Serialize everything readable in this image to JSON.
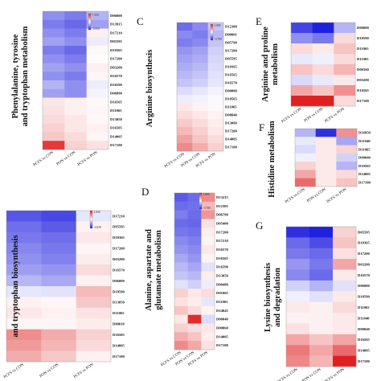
{
  "colors": {
    "low": "#2020e0",
    "mid": "#ffffff",
    "high": "#e02020"
  },
  "chart_data": [
    {
      "type": "heatmap",
      "panel": "",
      "title_lines": [
        "Phenylalanine, tyrosine",
        "and tryptophan metabolism"
      ],
      "columns": [
        "PCFS vs CON",
        "PON vs CON",
        "PCFS vs PON"
      ],
      "colorbar_labels": [
        "7.350",
        "-5.950"
      ],
      "vrange": [
        -5.95,
        7.35
      ],
      "rows": [
        "D06000",
        "D13915",
        "D17210",
        "D05595",
        "D10365",
        "D17200",
        "D03200",
        "D16570",
        "D16590",
        "D06090",
        "D16565",
        "D11065",
        "D13050",
        "D16505",
        "D14005",
        "D17100"
      ],
      "values": [
        [
          -3,
          -3.5,
          -2
        ],
        [
          -3.5,
          -4,
          -2.5
        ],
        [
          -3,
          -3.5,
          0.5
        ],
        [
          -2.5,
          -3,
          -0.5
        ],
        [
          -3.5,
          -4,
          0.2
        ],
        [
          -3,
          -3.5,
          0.1
        ],
        [
          -2.5,
          -3,
          0.5
        ],
        [
          -3,
          -3.5,
          0.3
        ],
        [
          -2,
          -3,
          -0.5
        ],
        [
          -2.5,
          -3,
          -0.3
        ],
        [
          0.8,
          0.5,
          0.2
        ],
        [
          1,
          0.5,
          0.3
        ],
        [
          1.2,
          0.8,
          0.2
        ],
        [
          1.5,
          0.8,
          0.5
        ],
        [
          1.8,
          1.2,
          0.3
        ],
        [
          6.5,
          1.5,
          1
        ]
      ]
    },
    {
      "type": "heatmap",
      "panel": "C",
      "title_lines": [
        "Arginine biosynthesis"
      ],
      "columns": [
        "PCFS vs CON",
        "PON vs CON",
        "PCFS vs PON"
      ],
      "colorbar_labels": [
        "3.800",
        "-3.780"
      ],
      "vrange": [
        -3.78,
        3.8
      ],
      "rows": [
        "D12300",
        "D00001",
        "D05790",
        "D17200",
        "D05595",
        "D10365",
        "D16565",
        "D16570",
        "D00000",
        "D10565",
        "D11065",
        "D00840",
        "D13060",
        "D17200",
        "D14005",
        "D17100"
      ],
      "values": [
        [
          -2.5,
          -2,
          -1
        ],
        [
          -2,
          -2.2,
          -1.2
        ],
        [
          -2.2,
          -2,
          -1
        ],
        [
          -1.8,
          -1.6,
          -0.8
        ],
        [
          -1.6,
          -1.4,
          -0.7
        ],
        [
          -1.4,
          -1.2,
          -0.6
        ],
        [
          -1.2,
          -1,
          -0.5
        ],
        [
          -1,
          -0.8,
          -0.4
        ],
        [
          -0.6,
          -0.4,
          -0.2
        ],
        [
          -0.3,
          -0.2,
          -0.1
        ],
        [
          0.4,
          0.2,
          0.1
        ],
        [
          0.6,
          0.4,
          0.2
        ],
        [
          0.9,
          0.6,
          0.3
        ],
        [
          1.2,
          0.8,
          0.4
        ],
        [
          1.6,
          1,
          0.6
        ],
        [
          2,
          1.4,
          0.8
        ]
      ]
    },
    {
      "type": "heatmap",
      "panel": "E",
      "title_lines": [
        "Arginine and proline",
        "metabolism"
      ],
      "columns": [
        "PCFS vs CON",
        "PON vs CON",
        "PCFS vs PON"
      ],
      "colorbar_labels": [],
      "vrange": [
        -3,
        3
      ],
      "rows": [
        "D06000",
        "D10590",
        "D11065",
        "D11005",
        "D00360",
        "D03200",
        "D16565",
        "D17100"
      ],
      "values": [
        [
          -2.5,
          -3,
          -1
        ],
        [
          -1.5,
          -1.8,
          0.5
        ],
        [
          0.5,
          0.3,
          0.8
        ],
        [
          -0.3,
          -0.2,
          0.5
        ],
        [
          0.8,
          0.5,
          1
        ],
        [
          -0.5,
          -0.3,
          0.3
        ],
        [
          1.2,
          0.8,
          1.5
        ],
        [
          3,
          3,
          0.5
        ]
      ]
    },
    {
      "type": "heatmap",
      "panel": "F",
      "title_lines": [
        "Histidine metabolism"
      ],
      "columns": [
        "PCFS vs CON",
        "PON vs CON",
        "PCFS vs PON"
      ],
      "colorbar_labels": [],
      "vrange": [
        -3,
        3
      ],
      "rows": [
        "D16950",
        "D11040",
        "D11065",
        "D00040",
        "D10565",
        "D14005",
        "D17100"
      ],
      "values": [
        [
          -1,
          -2.8,
          1.5
        ],
        [
          -0.3,
          0.3,
          -1.2
        ],
        [
          -0.5,
          0.3,
          0.6
        ],
        [
          -0.2,
          0.3,
          -0.6
        ],
        [
          0.6,
          0.3,
          -1
        ],
        [
          1.2,
          0.3,
          0.5
        ],
        [
          2,
          0.3,
          0.8
        ]
      ]
    },
    {
      "type": "heatmap",
      "panel": "",
      "title_lines": [
        "and tryptophan biosynthesis"
      ],
      "columns": [
        "PCFS vs CON",
        "PON vs CON",
        "PCFS vs PON"
      ],
      "colorbar_labels": [
        "4.840",
        "-4.630"
      ],
      "vrange": [
        -4.63,
        4.84
      ],
      "rows": [
        "D17210",
        "D05595",
        "D10365",
        "D17200",
        "D03200",
        "D16570",
        "D06000",
        "D10590",
        "D13050",
        "D11065",
        "D00010",
        "D16505",
        "D14005",
        "D17100"
      ],
      "values": [
        [
          -3.5,
          -3.8,
          -0.5
        ],
        [
          -3,
          -3.4,
          0.3
        ],
        [
          -2.8,
          -3,
          0.5
        ],
        [
          -2.5,
          -2.8,
          0.2
        ],
        [
          -2.3,
          -2.6,
          0.4
        ],
        [
          -2,
          -2.2,
          0.8
        ],
        [
          -1.5,
          -1.8,
          0.3
        ],
        [
          -0.5,
          -0.6,
          1.5
        ],
        [
          0.3,
          0.2,
          1.2
        ],
        [
          0.5,
          0.3,
          0.6
        ],
        [
          0.2,
          0.2,
          0.4
        ],
        [
          2.5,
          1.8,
          1
        ],
        [
          2.2,
          1.6,
          0.8
        ],
        [
          1.8,
          1.2,
          0.3
        ]
      ]
    },
    {
      "type": "heatmap",
      "panel": "D",
      "title_lines": [
        "Alanine, aspartate and",
        "glutamate metabolism"
      ],
      "columns": [
        "PCFS vs CON",
        "PON vs CON",
        "PCFS vs PON"
      ],
      "colorbar_labels": [
        "3.800",
        "-3.780"
      ],
      "vrange": [
        -3.78,
        3.8
      ],
      "rows": [
        "D13215",
        "D12305",
        "D06790",
        "D05400",
        "D17200",
        "D17210",
        "D16570",
        "D16565",
        "D16590",
        "D13050",
        "D00480",
        "D01065",
        "D11065",
        "D14045",
        "D00040",
        "D00060",
        "D14005",
        "D17100"
      ],
      "values": [
        [
          -2.8,
          -2.5,
          2
        ],
        [
          -2.5,
          -2.4,
          1.2
        ],
        [
          -2.2,
          -2.5,
          1.8
        ],
        [
          -2.5,
          -2.6,
          0.5
        ],
        [
          -2.3,
          -2.4,
          0.3
        ],
        [
          -2,
          -2.2,
          0.2
        ],
        [
          -1.8,
          -2,
          0.4
        ],
        [
          -1.5,
          -1.8,
          0.2
        ],
        [
          -1.2,
          -1.5,
          -0.5
        ],
        [
          -1,
          -1.2,
          0.3
        ],
        [
          -0.5,
          -0.8,
          -0.3
        ],
        [
          0.8,
          0.4,
          0.6
        ],
        [
          0.5,
          0.3,
          -0.4
        ],
        [
          1,
          0.6,
          0.2
        ],
        [
          0.4,
          3.6,
          -0.6
        ],
        [
          0.8,
          0.6,
          0.4
        ],
        [
          1.4,
          1,
          0.3
        ],
        [
          2,
          1.5,
          0.5
        ]
      ]
    },
    {
      "type": "heatmap",
      "panel": "G",
      "title_lines": [
        "Lysine biosynthesis",
        "and degradation"
      ],
      "columns": [
        "PCFS vs CON",
        "PON vs CON",
        "PCFS vs PON"
      ],
      "colorbar_labels": [],
      "vrange": [
        -3,
        3
      ],
      "rows": [
        "D05595",
        "D10365",
        "D17200",
        "D03200",
        "D16570",
        "D06000",
        "D10590",
        "D11065",
        "D11040",
        "D00040",
        "D16565",
        "D14005",
        "D17100"
      ],
      "values": [
        [
          -2.8,
          -3,
          0.6
        ],
        [
          -2,
          -2.4,
          0.8
        ],
        [
          -1.8,
          -2,
          0.4
        ],
        [
          -1.4,
          -1.8,
          1.2
        ],
        [
          -1.6,
          -2,
          0.3
        ],
        [
          -0.6,
          -1,
          -0.4
        ],
        [
          -0.2,
          -0.4,
          0.3
        ],
        [
          0.3,
          0.2,
          0.5
        ],
        [
          0.2,
          0.2,
          0.3
        ],
        [
          0.4,
          0.2,
          0.3
        ],
        [
          1.2,
          0.8,
          1.2
        ],
        [
          1.8,
          1.2,
          2
        ],
        [
          1.6,
          1,
          3
        ]
      ]
    }
  ]
}
